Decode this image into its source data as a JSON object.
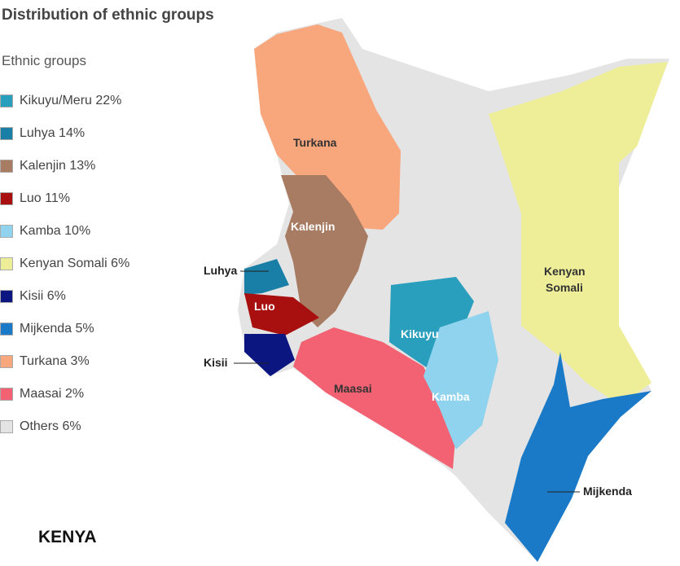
{
  "title": "Distribution of ethnic groups",
  "legend_title": "Ethnic groups",
  "legend": [
    {
      "label": "Kikuyu/Meru 22%",
      "color": "#2a9fbd"
    },
    {
      "label": "Luhya 14%",
      "color": "#1a7fa6"
    },
    {
      "label": "Kalenjin 13%",
      "color": "#a87b63"
    },
    {
      "label": "Luo 11%",
      "color": "#a81010"
    },
    {
      "label": "Kamba 10%",
      "color": "#8fd3ee"
    },
    {
      "label": "Kenyan Somali 6%",
      "color": "#eeee99"
    },
    {
      "label": "Kisii 6%",
      "color": "#0b1680"
    },
    {
      "label": "Mijkenda 5%",
      "color": "#1b7ac8"
    },
    {
      "label": "Turkana 3%",
      "color": "#f8a67c"
    },
    {
      "label": "Maasai 2%",
      "color": "#f26273"
    },
    {
      "label": "Others 6%",
      "color": "#e4e4e4"
    }
  ],
  "map_labels": {
    "turkana": "Turkana",
    "kalenjin": "Kalenjin",
    "luhya": "Luhya",
    "luo": "Luo",
    "kisii": "Kisii",
    "maasai": "Maasai",
    "kikuyu": "Kikuyu",
    "kamba": "Kamba",
    "somali_1": "Kenyan",
    "somali_2": "Somali",
    "mijkenda": "Mijkenda"
  },
  "country": "KENYA"
}
